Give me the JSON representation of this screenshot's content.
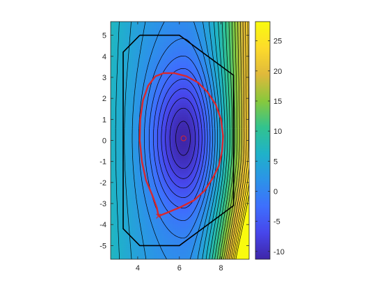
{
  "chart_data": {
    "type": "heatmap",
    "title": "",
    "xlabel": "",
    "ylabel": "",
    "xlim": [
      2.7,
      9.35
    ],
    "ylim": [
      -5.65,
      5.65
    ],
    "x_ticks": [
      "4",
      "6",
      "8"
    ],
    "y_ticks": [
      "-5",
      "-4",
      "-3",
      "-2",
      "-1",
      "0",
      "1",
      "2",
      "3",
      "4",
      "5"
    ],
    "colorbar": {
      "limits": [
        -11.3,
        28.2
      ],
      "ticks": [
        "-10",
        "-5",
        "0",
        "5",
        "10",
        "15",
        "20",
        "25"
      ],
      "colormap": "parula",
      "colormap_stops": [
        "#3e26a8",
        "#4746eb",
        "#3e6ffd",
        "#2c93e8",
        "#1fb2c9",
        "#32c38e",
        "#89c83c",
        "#e0b93b",
        "#fddb2b",
        "#f9fb0e"
      ]
    },
    "field_features": {
      "minimum": {
        "x": 6.2,
        "y": 0.1,
        "value": -11.3
      },
      "maximum_corner": {
        "x": 9.35,
        "y": -5.65,
        "value": 28.2
      },
      "upper_right_corner_value": 10
    },
    "vessel_boundary": {
      "color": "#000000",
      "x": [
        4.1,
        6.0,
        8.6,
        8.6,
        6.0,
        4.1,
        3.3,
        3.3,
        4.1
      ],
      "y": [
        5.0,
        5.0,
        3.1,
        -3.1,
        -5.0,
        -5.0,
        -4.2,
        4.2,
        5.0
      ]
    },
    "separatrix": {
      "color": "#d7282f",
      "x": [
        5.0,
        4.92,
        4.7,
        4.4,
        4.2,
        4.1,
        4.12,
        4.25,
        4.5,
        4.85,
        5.25,
        5.75,
        6.35,
        6.9,
        7.35,
        7.75,
        8.0,
        8.1,
        8.05,
        7.9,
        7.6,
        7.2,
        6.7,
        6.1,
        5.5,
        5.0
      ],
      "y": [
        -3.6,
        -3.2,
        -2.6,
        -1.9,
        -1.0,
        0.0,
        1.0,
        1.9,
        2.6,
        3.05,
        3.2,
        3.2,
        3.05,
        2.75,
        2.3,
        1.7,
        1.0,
        0.2,
        -0.5,
        -1.2,
        -1.8,
        -2.4,
        -2.85,
        -3.15,
        -3.4,
        -3.6
      ]
    },
    "magnetic_axis_marker": {
      "x": 6.2,
      "y": 0.1,
      "shape": "circle",
      "color": "#d7282f"
    },
    "x_point_marker": {
      "x": 5.0,
      "y": -3.6,
      "shape": "x",
      "color": "#d7282f"
    },
    "contour_lines": {
      "color": "#000000"
    }
  }
}
